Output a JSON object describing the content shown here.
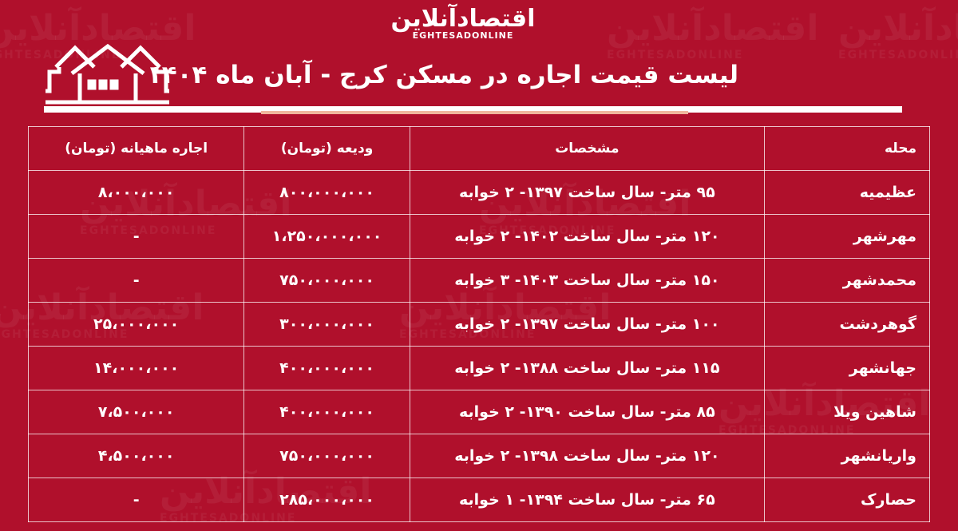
{
  "brand": {
    "logo_fa": "اقتصادآنلاین",
    "logo_en": "EGHTESADONLINE"
  },
  "title": "لیست قیمت اجاره در مسکن کرج - آبان ماه ۱۴۰۴",
  "colors": {
    "background": "#b0102c",
    "text": "#ffffff",
    "rule_accent": "#f0b79d"
  },
  "icons": [
    "houses-icon"
  ],
  "table": {
    "headers": [
      "محله",
      "مشخصات",
      "ودیعه (تومان)",
      "اجاره ماهیانه (تومان)"
    ],
    "rows": [
      [
        "عظیمیه",
        "۹۵ متر- سال ساخت ۱۳۹۷- ۲ خوابه",
        "۸۰۰،۰۰۰،۰۰۰",
        "۸،۰۰۰،۰۰۰"
      ],
      [
        "مهرشهر",
        "۱۲۰ متر- سال ساخت ۱۴۰۲- ۲ خوابه",
        "۱،۲۵۰،۰۰۰،۰۰۰",
        "-"
      ],
      [
        "محمدشهر",
        "۱۵۰ متر- سال ساخت ۱۴۰۳- ۳ خوابه",
        "۷۵۰،۰۰۰،۰۰۰",
        "-"
      ],
      [
        "گوهردشت",
        "۱۰۰ متر- سال ساخت ۱۳۹۷- ۲ خوابه",
        "۳۰۰،۰۰۰،۰۰۰",
        "۲۵،۰۰۰،۰۰۰"
      ],
      [
        "جهانشهر",
        "۱۱۵ متر- سال ساخت ۱۳۸۸- ۲ خوابه",
        "۴۰۰،۰۰۰،۰۰۰",
        "۱۴،۰۰۰،۰۰۰"
      ],
      [
        "شاهین ویلا",
        "۸۵ متر- سال ساخت ۱۳۹۰- ۲ خوابه",
        "۴۰۰،۰۰۰،۰۰۰",
        "۷،۵۰۰،۰۰۰"
      ],
      [
        "واریانشهر",
        "۱۲۰ متر- سال ساخت ۱۳۹۸- ۲ خوابه",
        "۷۵۰،۰۰۰،۰۰۰",
        "۴،۵۰۰،۰۰۰"
      ],
      [
        "حصارک",
        "۶۵ متر- سال ساخت ۱۳۹۴- ۱ خوابه",
        "۲۸۵،۰۰۰،۰۰۰",
        "-"
      ]
    ]
  }
}
